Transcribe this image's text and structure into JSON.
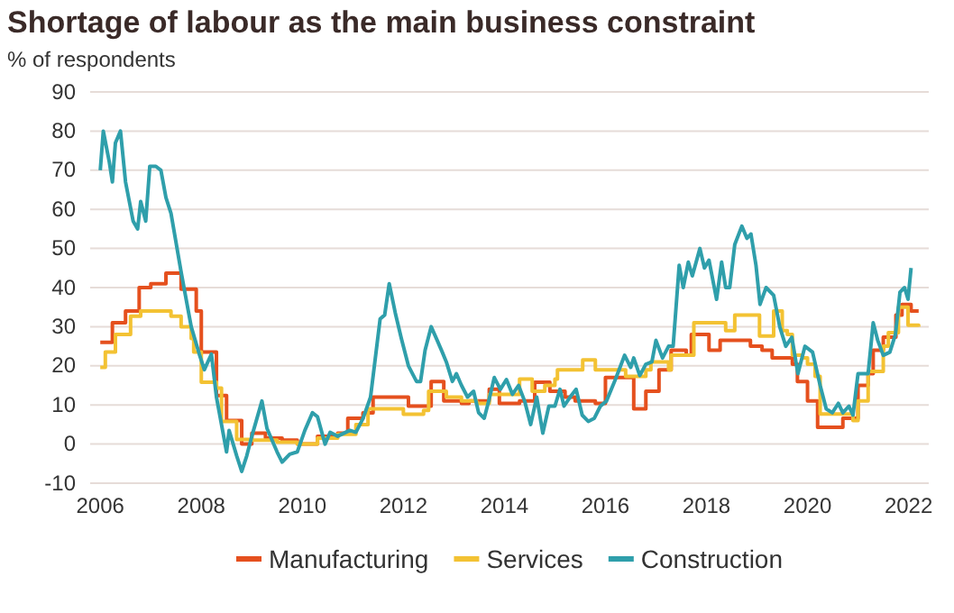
{
  "chart_data": {
    "type": "line",
    "title": "Shortage of labour as the main business constraint",
    "subtitle": "% of respondents",
    "xlim": [
      2005.8,
      2022.4
    ],
    "xticks": [
      2006,
      2008,
      2010,
      2012,
      2014,
      2016,
      2018,
      2020,
      2022
    ],
    "ylim": [
      -10,
      90
    ],
    "yticks": [
      -10,
      0,
      10,
      20,
      30,
      40,
      50,
      60,
      70,
      80,
      90
    ],
    "grid": "y",
    "legend": "bottom",
    "line_style": "solid",
    "marker": "none",
    "series": [
      {
        "name": "Manufacturing",
        "color": "#e5501e",
        "type": "step",
        "x": [
          2006.0,
          2006.24,
          2006.5,
          2006.77,
          2007.0,
          2007.3,
          2007.6,
          2007.9,
          2008.0,
          2008.3,
          2008.5,
          2008.8,
          2009.0,
          2009.27,
          2009.6,
          2009.9,
          2010.3,
          2010.7,
          2010.9,
          2011.2,
          2011.4,
          2012.1,
          2012.55,
          2012.8,
          2013.15,
          2013.3,
          2013.7,
          2013.9,
          2014.3,
          2014.6,
          2014.9,
          2015.2,
          2015.4,
          2015.8,
          2016.0,
          2016.56,
          2016.8,
          2017.06,
          2017.3,
          2017.6,
          2017.7,
          2018.05,
          2018.27,
          2018.87,
          2019.1,
          2019.3,
          2019.7,
          2019.8,
          2020.0,
          2020.2,
          2020.7,
          2021.0,
          2021.2,
          2021.3,
          2021.5,
          2021.75,
          2021.87,
          2022.05,
          2022.2
        ],
        "values": [
          26,
          31,
          34,
          40,
          41,
          43.7,
          39.6,
          34,
          23.5,
          12.4,
          6,
          0,
          2.8,
          1.5,
          1,
          0,
          2,
          2.8,
          6.6,
          8,
          12,
          9.7,
          16,
          11,
          10.4,
          11,
          14,
          10.4,
          11,
          15.8,
          13.5,
          12,
          11,
          10.4,
          17,
          9,
          13.5,
          19,
          24,
          22.7,
          28,
          24,
          26.5,
          25,
          24,
          22,
          20.4,
          16,
          11,
          4.3,
          6.6,
          15,
          18,
          24,
          27.3,
          33,
          35.7,
          34,
          34
        ]
      },
      {
        "name": "Services",
        "color": "#f3c233",
        "type": "step",
        "x": [
          2006.0,
          2006.1,
          2006.3,
          2006.6,
          2006.8,
          2007.4,
          2007.6,
          2007.8,
          2007.85,
          2008.0,
          2008.3,
          2008.4,
          2008.7,
          2009.0,
          2009.5,
          2009.9,
          2010.3,
          2010.7,
          2011.06,
          2011.3,
          2011.55,
          2012.0,
          2012.4,
          2012.5,
          2012.85,
          2013.15,
          2013.45,
          2013.7,
          2014.3,
          2014.55,
          2014.8,
          2015.0,
          2015.05,
          2015.55,
          2015.8,
          2016.4,
          2016.8,
          2016.9,
          2017.25,
          2017.3,
          2017.75,
          2018.38,
          2018.56,
          2019.05,
          2019.33,
          2019.5,
          2019.6,
          2019.7,
          2019.9,
          2020.0,
          2020.15,
          2020.25,
          2020.9,
          2021.0,
          2021.2,
          2021.5,
          2021.6,
          2021.8,
          2021.99,
          2022.2
        ],
        "values": [
          19.6,
          23.5,
          28,
          32.7,
          34,
          32.7,
          30,
          27,
          23.5,
          15.8,
          14.3,
          5.8,
          1.2,
          1,
          0.5,
          0,
          1.5,
          2.5,
          5,
          9,
          9,
          7.6,
          8.6,
          13.5,
          12,
          11,
          10.4,
          12.7,
          16.6,
          13.5,
          15,
          16.6,
          19,
          21.5,
          19,
          17.3,
          19,
          21,
          19,
          22.7,
          31,
          29,
          33,
          27.6,
          34,
          29,
          28,
          22.7,
          22,
          20.4,
          17.3,
          7.7,
          6,
          11,
          18.6,
          25,
          28.5,
          35,
          30.4,
          30
        ]
      },
      {
        "name": "Construction",
        "color": "#2f9fab",
        "x": [
          2006.0,
          2006.06,
          2006.18,
          2006.24,
          2006.3,
          2006.4,
          2006.5,
          2006.65,
          2006.74,
          2006.8,
          2006.9,
          2006.98,
          2007.1,
          2007.2,
          2007.3,
          2007.4,
          2007.6,
          2007.8,
          2007.96,
          2008.06,
          2008.2,
          2008.3,
          2008.5,
          2008.55,
          2008.7,
          2008.8,
          2008.9,
          2009.0,
          2009.2,
          2009.3,
          2009.5,
          2009.6,
          2009.75,
          2009.9,
          2010.05,
          2010.2,
          2010.3,
          2010.45,
          2010.55,
          2010.7,
          2010.94,
          2011.06,
          2011.2,
          2011.35,
          2011.54,
          2011.63,
          2011.72,
          2011.84,
          2011.96,
          2012.1,
          2012.26,
          2012.34,
          2012.43,
          2012.55,
          2012.67,
          2012.77,
          2012.85,
          2012.97,
          2013.05,
          2013.15,
          2013.27,
          2013.39,
          2013.49,
          2013.6,
          2013.69,
          2013.8,
          2013.92,
          2014.04,
          2014.16,
          2014.28,
          2014.4,
          2014.52,
          2014.64,
          2014.76,
          2014.88,
          2015.0,
          2015.1,
          2015.18,
          2015.3,
          2015.42,
          2015.54,
          2015.66,
          2015.78,
          2015.9,
          2016.02,
          2016.2,
          2016.38,
          2016.5,
          2016.56,
          2016.68,
          2016.8,
          2016.92,
          2017.0,
          2017.13,
          2017.25,
          2017.34,
          2017.46,
          2017.54,
          2017.64,
          2017.72,
          2017.87,
          2017.96,
          2018.05,
          2018.2,
          2018.3,
          2018.38,
          2018.46,
          2018.56,
          2018.7,
          2018.8,
          2018.88,
          2018.98,
          2019.06,
          2019.18,
          2019.33,
          2019.45,
          2019.57,
          2019.69,
          2019.81,
          2019.95,
          2020.1,
          2020.25,
          2020.37,
          2020.49,
          2020.61,
          2020.7,
          2020.82,
          2020.9,
          2021.0,
          2021.12,
          2021.2,
          2021.3,
          2021.39,
          2021.5,
          2021.63,
          2021.74,
          2021.83,
          2021.92,
          2021.99,
          2022.05
        ],
        "values": [
          70,
          80,
          72,
          67,
          77,
          80,
          67,
          57,
          55,
          62,
          57,
          71,
          71,
          70,
          63,
          59,
          44,
          30,
          23,
          19,
          23,
          12,
          -2,
          3.5,
          -3,
          -7,
          -3,
          2,
          11,
          4,
          -2,
          -4.6,
          -2.6,
          -2,
          3.5,
          8,
          7,
          0,
          3,
          2,
          3.5,
          3,
          6.5,
          12,
          32,
          33,
          41,
          33.5,
          27,
          20,
          16,
          16,
          24,
          30,
          26.5,
          23.5,
          21,
          16,
          18,
          15,
          12,
          13.5,
          8,
          6.6,
          11,
          17,
          14,
          16.5,
          12.7,
          15,
          11,
          5,
          12,
          2.8,
          9.7,
          9.7,
          14,
          9.7,
          12,
          14,
          7.4,
          5.8,
          6.6,
          9.7,
          11,
          16.6,
          22.7,
          19.6,
          22,
          17.5,
          20.4,
          21,
          26.5,
          22,
          25,
          25,
          45.7,
          40,
          46.5,
          43,
          50,
          45,
          47,
          37,
          46.5,
          40,
          40,
          51,
          55.7,
          52.6,
          53.7,
          45.7,
          35.7,
          40,
          38,
          30,
          25,
          27.3,
          18,
          25,
          23.5,
          15,
          9,
          8,
          10.4,
          8,
          9.7,
          7.4,
          18,
          18,
          18,
          31,
          26.5,
          22.7,
          23.5,
          28,
          38.8,
          40,
          37,
          45
        ]
      }
    ]
  }
}
